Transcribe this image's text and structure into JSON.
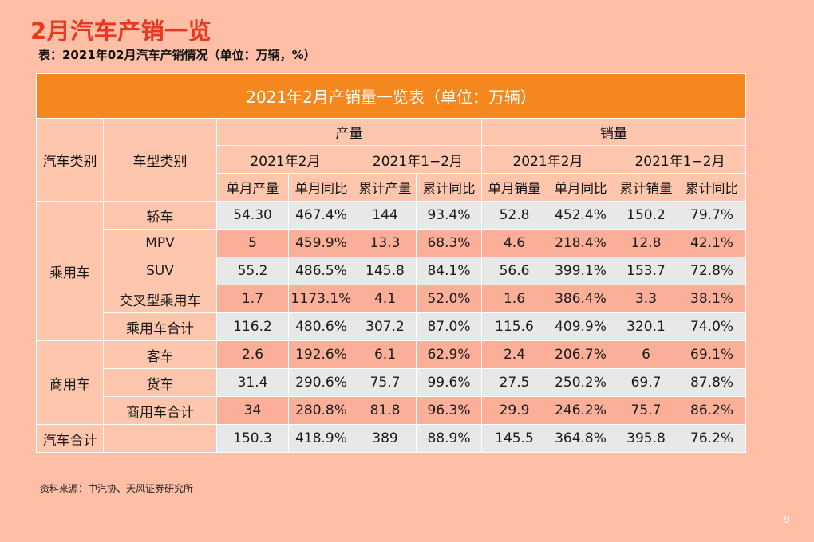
{
  "page": {
    "title": "2月汽车产销一览",
    "subtitle": "表：2021年02月汽车产销情况（单位：万辆，%）",
    "source": "资料来源：中汽协、天风证券研究所",
    "page_number": "9"
  },
  "table": {
    "title": "2021年2月产销量一览表（单位：万辆）",
    "col_vehicle_class": "汽车类别",
    "col_model_class": "车型类别",
    "group_production": "产量",
    "group_sales": "销量",
    "period_month": "2021年2月",
    "period_ytd": "2021年1−2月",
    "sub_headers": [
      "单月产量",
      "单月同比",
      "累计产量",
      "累计同比",
      "单月销量",
      "单月同比",
      "累计销量",
      "累计同比"
    ],
    "categories": [
      {
        "name": "乘用车",
        "rows": [
          {
            "model": "轿车",
            "values": [
              "54.30",
              "467.4%",
              "144",
              "93.4%",
              "52.8",
              "452.4%",
              "150.2",
              "79.7%"
            ]
          },
          {
            "model": "MPV",
            "values": [
              "5",
              "459.9%",
              "13.3",
              "68.3%",
              "4.6",
              "218.4%",
              "12.8",
              "42.1%"
            ]
          },
          {
            "model": "SUV",
            "values": [
              "55.2",
              "486.5%",
              "145.8",
              "84.1%",
              "56.6",
              "399.1%",
              "153.7",
              "72.8%"
            ]
          },
          {
            "model": "交叉型乘用车",
            "values": [
              "1.7",
              "1173.1%",
              "4.1",
              "52.0%",
              "1.6",
              "386.4%",
              "3.3",
              "38.1%"
            ]
          },
          {
            "model": "乘用车合计",
            "values": [
              "116.2",
              "480.6%",
              "307.2",
              "87.0%",
              "115.6",
              "409.9%",
              "320.1",
              "74.0%"
            ]
          }
        ]
      },
      {
        "name": "商用车",
        "rows": [
          {
            "model": "客车",
            "values": [
              "2.6",
              "192.6%",
              "6.1",
              "62.9%",
              "2.4",
              "206.7%",
              "6",
              "69.1%"
            ]
          },
          {
            "model": "货车",
            "values": [
              "31.4",
              "290.6%",
              "75.7",
              "99.6%",
              "27.5",
              "250.2%",
              "69.7",
              "87.8%"
            ]
          },
          {
            "model": "商用车合计",
            "values": [
              "34",
              "280.8%",
              "81.8",
              "96.3%",
              "29.9",
              "246.2%",
              "75.7",
              "86.2%"
            ]
          }
        ]
      },
      {
        "name": "汽车合计",
        "rows": [
          {
            "model": "",
            "values": [
              "150.3",
              "418.9%",
              "389",
              "88.9%",
              "145.5",
              "364.8%",
              "395.8",
              "76.2%"
            ]
          }
        ]
      }
    ]
  }
}
